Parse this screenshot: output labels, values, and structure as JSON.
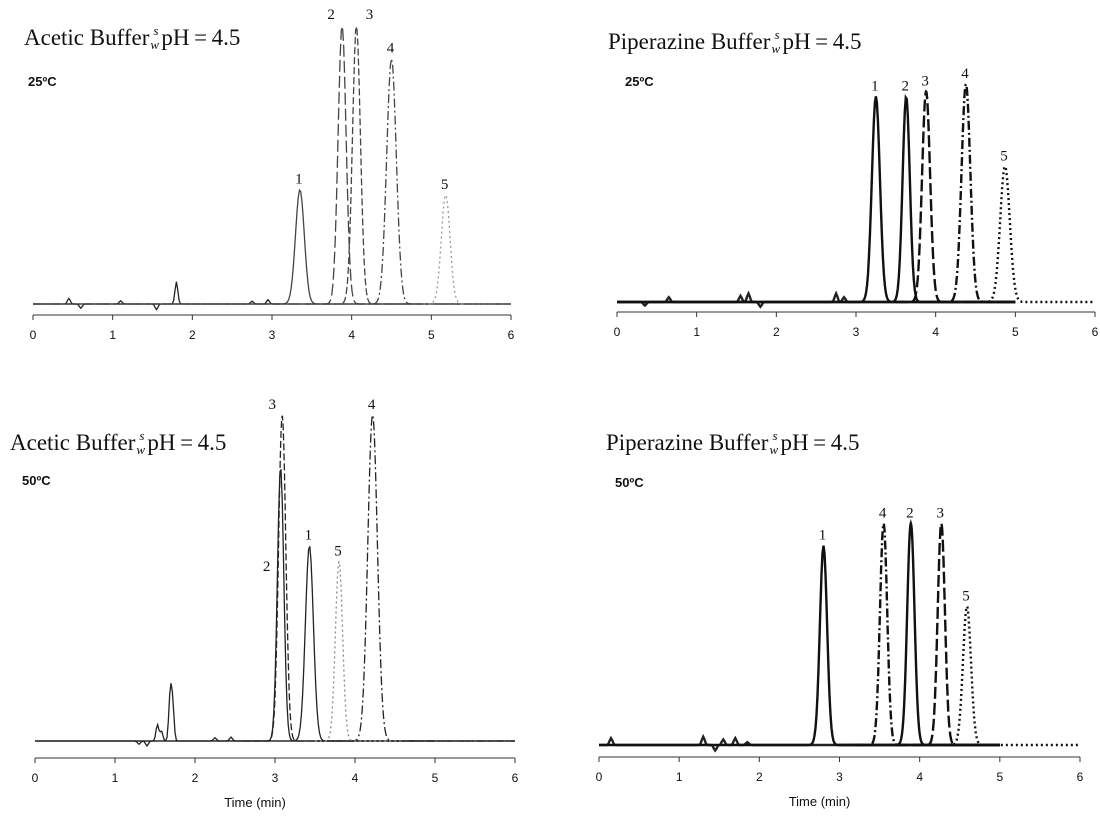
{
  "chart_data": [
    {
      "type": "line",
      "title": "Acetic Buffer",
      "ph_label": {
        "super": "s",
        "sub": "w",
        "text": "pH = 4.5"
      },
      "temperature": "25ºC",
      "xlabel": "",
      "xlim": [
        0,
        6
      ],
      "xticks": [
        0,
        1,
        2,
        3,
        4,
        5,
        6
      ],
      "grid": false,
      "style": "thin",
      "series": [
        {
          "peak": "1",
          "label": "1",
          "tr": 3.35,
          "height": 0.41,
          "width": 0.055,
          "dash": "solid",
          "color": "#444444",
          "start": 0,
          "end": 6
        },
        {
          "peak": "2",
          "label": "2",
          "tr": 3.88,
          "height": 1.0,
          "width": 0.05,
          "dash": "longdash",
          "color": "#444444",
          "start": 0,
          "end": 6
        },
        {
          "peak": "3",
          "label": "3",
          "tr": 4.06,
          "height": 1.0,
          "width": 0.05,
          "dash": "dash",
          "color": "#444444",
          "start": 0,
          "end": 6
        },
        {
          "peak": "4",
          "label": "4",
          "tr": 4.5,
          "height": 0.88,
          "width": 0.06,
          "dash": "dashdot",
          "color": "#444444",
          "start": 0,
          "end": 6
        },
        {
          "peak": "5",
          "label": "5",
          "tr": 5.18,
          "height": 0.39,
          "width": 0.055,
          "dash": "dot",
          "color": "#999999",
          "start": 4.9,
          "end": 5.4
        }
      ],
      "artifacts": [
        [
          0.45,
          0.02
        ],
        [
          0.6,
          -0.015
        ],
        [
          1.1,
          0.012
        ],
        [
          1.55,
          -0.02
        ],
        [
          1.8,
          0.08
        ],
        [
          2.75,
          0.01
        ],
        [
          2.95,
          0.015
        ]
      ]
    },
    {
      "type": "line",
      "title": "Piperazine Buffer",
      "ph_label": {
        "super": "s",
        "sub": "w",
        "text": "pH = 4.5"
      },
      "temperature": "25ºC",
      "xlabel": "",
      "xlim": [
        0,
        6
      ],
      "xticks": [
        0,
        1,
        2,
        3,
        4,
        5,
        6
      ],
      "grid": false,
      "style": "bold",
      "series": [
        {
          "peak": "1",
          "label": "1",
          "tr": 3.25,
          "height": 0.85,
          "width": 0.05,
          "dash": "solid",
          "color": "#111111",
          "start": 0,
          "end": 5
        },
        {
          "peak": "2",
          "label": "2",
          "tr": 3.63,
          "height": 0.85,
          "width": 0.045,
          "dash": "solid",
          "color": "#111111",
          "start": 0,
          "end": 5
        },
        {
          "peak": "3",
          "label": "3",
          "tr": 3.88,
          "height": 0.87,
          "width": 0.05,
          "dash": "longdash",
          "color": "#111111",
          "start": 3.5,
          "end": 5
        },
        {
          "peak": "4",
          "label": "4",
          "tr": 4.38,
          "height": 0.9,
          "width": 0.055,
          "dash": "dashdot",
          "color": "#111111",
          "start": 4.2,
          "end": 5
        },
        {
          "peak": "5",
          "label": "5",
          "tr": 4.87,
          "height": 0.56,
          "width": 0.06,
          "dash": "dot",
          "color": "#111111",
          "start": 4.6,
          "end": 6
        }
      ],
      "artifacts": [
        [
          0.35,
          -0.015
        ],
        [
          0.65,
          0.02
        ],
        [
          1.55,
          0.025
        ],
        [
          1.65,
          0.035
        ],
        [
          1.8,
          -0.02
        ],
        [
          2.75,
          0.035
        ],
        [
          2.85,
          0.02
        ]
      ]
    },
    {
      "type": "line",
      "title": "Acetic Buffer",
      "ph_label": {
        "super": "s",
        "sub": "w",
        "text": "pH = 4.5"
      },
      "temperature": "50ºC",
      "xlabel": "Time (min)",
      "xlim": [
        0,
        6
      ],
      "xticks": [
        0,
        1,
        2,
        3,
        4,
        5,
        6
      ],
      "grid": false,
      "style": "thin",
      "series": [
        {
          "peak": "1",
          "label": "1",
          "tr": 3.43,
          "height": 0.6,
          "width": 0.05,
          "dash": "solid",
          "color": "#222222",
          "start": 0,
          "end": 6
        },
        {
          "peak": "2",
          "label": "2",
          "tr": 3.07,
          "height": 0.84,
          "width": 0.04,
          "dash": "solid",
          "color": "#222222",
          "start": 0,
          "end": 6
        },
        {
          "peak": "3",
          "label": "3",
          "tr": 3.09,
          "height": 1.0,
          "width": 0.045,
          "dash": "dash",
          "color": "#222222",
          "start": 2.6,
          "end": 6
        },
        {
          "peak": "4",
          "label": "4",
          "tr": 4.22,
          "height": 1.0,
          "width": 0.06,
          "dash": "dashdot",
          "color": "#222222",
          "start": 3.5,
          "end": 6
        },
        {
          "peak": "5",
          "label": "5",
          "tr": 3.8,
          "height": 0.55,
          "width": 0.045,
          "dash": "dot",
          "color": "#888888",
          "start": 3.5,
          "end": 4.6
        }
      ],
      "artifacts": [
        [
          1.3,
          -0.01
        ],
        [
          1.4,
          -0.015
        ],
        [
          1.53,
          0.05
        ],
        [
          1.58,
          0.03
        ],
        [
          1.69,
          0.14
        ],
        [
          1.72,
          0.11
        ],
        [
          2.25,
          0.01
        ],
        [
          2.45,
          0.012
        ]
      ]
    },
    {
      "type": "line",
      "title": "Piperazine Buffer",
      "ph_label": {
        "super": "s",
        "sub": "w",
        "text": "pH = 4.5"
      },
      "temperature": "50ºC",
      "xlabel": "Time (min)",
      "xlim": [
        0,
        6
      ],
      "xticks": [
        0,
        1,
        2,
        3,
        4,
        5,
        6
      ],
      "grid": false,
      "style": "bold",
      "series": [
        {
          "peak": "1",
          "label": "1",
          "tr": 2.8,
          "height": 0.72,
          "width": 0.045,
          "dash": "solid",
          "color": "#111111",
          "start": 0,
          "end": 5
        },
        {
          "peak": "2",
          "label": "2",
          "tr": 3.89,
          "height": 0.8,
          "width": 0.045,
          "dash": "solid",
          "color": "#111111",
          "start": 3.0,
          "end": 5
        },
        {
          "peak": "3",
          "label": "3",
          "tr": 4.27,
          "height": 0.8,
          "width": 0.045,
          "dash": "longdash",
          "color": "#111111",
          "start": 3.7,
          "end": 5
        },
        {
          "peak": "4",
          "label": "4",
          "tr": 3.55,
          "height": 0.8,
          "width": 0.045,
          "dash": "dashdot",
          "color": "#111111",
          "start": 3.2,
          "end": 5
        },
        {
          "peak": "5",
          "label": "5",
          "tr": 4.59,
          "height": 0.5,
          "width": 0.05,
          "dash": "dot",
          "color": "#111111",
          "start": 4.3,
          "end": 6
        }
      ],
      "artifacts": [
        [
          0.15,
          0.025
        ],
        [
          1.3,
          0.03
        ],
        [
          1.45,
          -0.02
        ],
        [
          1.55,
          0.02
        ],
        [
          1.7,
          0.025
        ],
        [
          1.85,
          0.01
        ]
      ]
    }
  ]
}
